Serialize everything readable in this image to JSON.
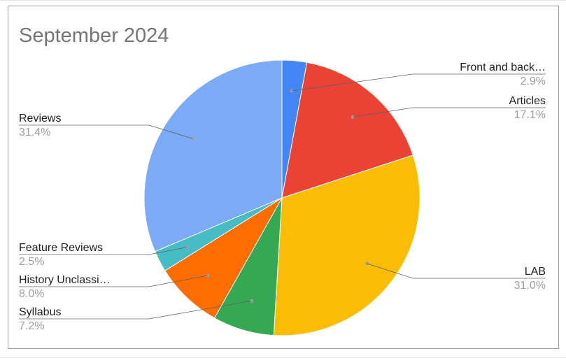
{
  "chart_data": {
    "type": "pie",
    "title": "September 2024",
    "slices": [
      {
        "label": "Front and back…",
        "value": 2.9,
        "percent_label": "2.9%",
        "color": "#4285f4"
      },
      {
        "label": "Articles",
        "value": 17.1,
        "percent_label": "17.1%",
        "color": "#ea4335"
      },
      {
        "label": "LAB",
        "value": 31.0,
        "percent_label": "31.0%",
        "color": "#fbbc04"
      },
      {
        "label": "Syllabus",
        "value": 7.2,
        "percent_label": "7.2%",
        "color": "#34a853"
      },
      {
        "label": "History Unclassi…",
        "value": 8.0,
        "percent_label": "8.0%",
        "color": "#ff6d01"
      },
      {
        "label": "Feature Reviews",
        "value": 2.5,
        "percent_label": "2.5%",
        "color": "#46bdc6"
      },
      {
        "label": "Reviews",
        "value": 31.4,
        "percent_label": "31.4%",
        "color": "#7baaf7"
      }
    ],
    "legend": "none",
    "labels_position": "outside with leader lines"
  }
}
